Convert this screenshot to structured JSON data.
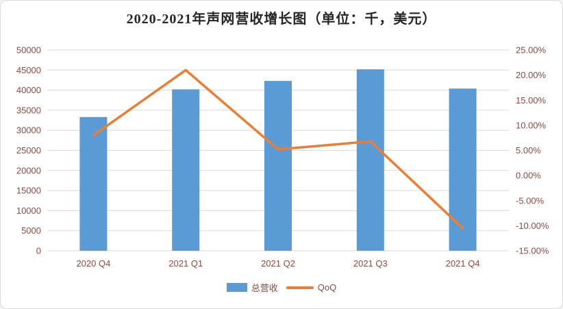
{
  "chart_data": {
    "type": "combo",
    "title": "2020-2021年声网营收增长图（单位：千，美元）",
    "categories": [
      "2020 Q4",
      "2021 Q1",
      "2021 Q2",
      "2021 Q3",
      "2021 Q4"
    ],
    "series": [
      {
        "name": "总营收",
        "type": "bar",
        "axis": "left",
        "values": [
          33300,
          40200,
          42300,
          45200,
          40400
        ]
      },
      {
        "name": "QoQ",
        "type": "line",
        "axis": "right",
        "values": [
          8.0,
          21.0,
          5.2,
          6.8,
          -10.5
        ]
      }
    ],
    "left_axis": {
      "min": 0,
      "max": 50000,
      "step": 5000,
      "tick_labels": [
        "0",
        "5000",
        "10000",
        "15000",
        "20000",
        "25000",
        "30000",
        "35000",
        "40000",
        "45000",
        "50000"
      ]
    },
    "right_axis": {
      "min": -15,
      "max": 25,
      "step": 5,
      "tick_labels": [
        "-15.00%",
        "-10.00%",
        "-5.00%",
        "0.00%",
        "5.00%",
        "10.00%",
        "15.00%",
        "20.00%",
        "25.00%"
      ]
    },
    "grid": true,
    "legend_position": "bottom"
  },
  "colors": {
    "bar": "#5B9BD5",
    "line": "#ED7D31",
    "gridline": "#D9D9D9",
    "axis_label": "#8C4B3B",
    "title": "#262626",
    "background": "#FFFFFF"
  }
}
